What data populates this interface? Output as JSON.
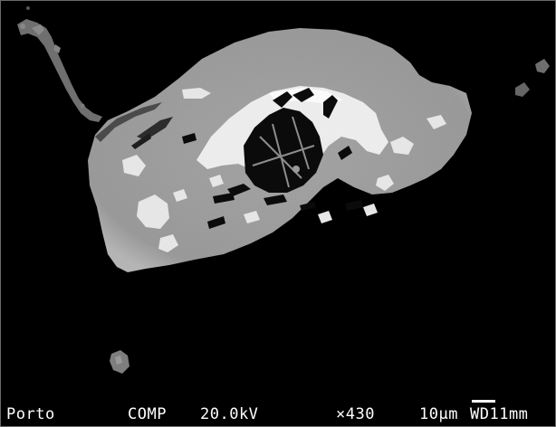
{
  "info_bar": {
    "operator": "Porto",
    "mode": "COMP",
    "voltage": "20.0kV",
    "magnification": "×430",
    "scale": "10μm",
    "working_distance": "WD11mm"
  },
  "colors": {
    "background": "#000000",
    "matrix_gray": "#9a9a9a",
    "bright_phase": "#efefef",
    "dark_inclusion": "#0a0a0a",
    "text": "#ffffff"
  }
}
